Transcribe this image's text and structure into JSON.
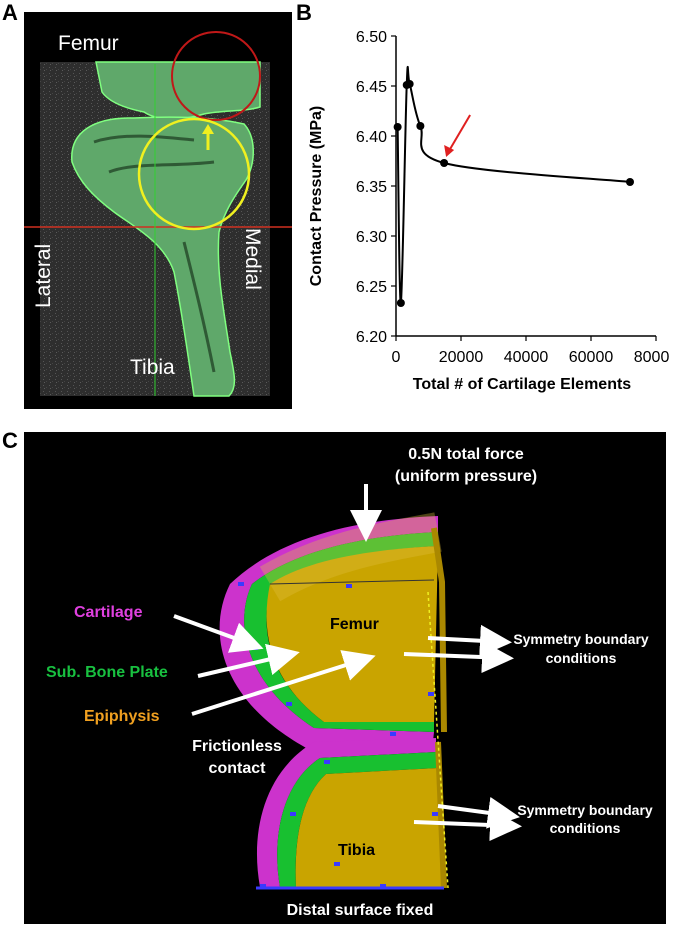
{
  "panels": {
    "a": "A",
    "b": "B",
    "c": "C"
  },
  "panel_a": {
    "femur": "Femur",
    "tibia": "Tibia",
    "lateral": "Lateral",
    "medial": "Medial"
  },
  "chart_data": {
    "type": "line",
    "xlabel": "Total # of Cartilage Elements",
    "ylabel": "Contact Pressure (MPa)",
    "xlim": [
      0,
      80000
    ],
    "ylim": [
      6.2,
      6.5
    ],
    "x_ticks": [
      0,
      20000,
      40000,
      60000,
      80000
    ],
    "y_ticks": [
      6.2,
      6.25,
      6.3,
      6.35,
      6.4,
      6.45,
      6.5
    ],
    "x_tick_labels": [
      "0",
      "20000",
      "40000",
      "60000",
      "80000"
    ],
    "y_tick_labels": [
      "6.20",
      "6.25",
      "6.30",
      "6.35",
      "6.40",
      "6.45",
      "6.50"
    ],
    "grid": false,
    "series": [
      {
        "x": [
          500,
          1500,
          3300,
          4200,
          7500,
          14800,
          72000
        ],
        "values": [
          6.409,
          6.233,
          6.451,
          6.452,
          6.41,
          6.373,
          6.354
        ]
      }
    ],
    "annotation": {
      "type": "red-arrow",
      "points_to_x": 14800
    },
    "colors": {
      "line": "#000000",
      "marker": "#000000",
      "arrow": "#e02020"
    }
  },
  "panel_c": {
    "force": [
      "0.5N total force",
      "(uniform pressure)"
    ],
    "cartilage": "Cartilage",
    "sub_bone_plate": "Sub. Bone Plate",
    "epiphysis": "Epiphysis",
    "frictionless": [
      "Frictionless",
      "contact"
    ],
    "femur": "Femur",
    "tibia": "Tibia",
    "symmetry_1": [
      "Symmetry boundary",
      "conditions"
    ],
    "symmetry_2": [
      "Symmetry boundary",
      "conditions"
    ],
    "distal": "Distal surface fixed",
    "colors": {
      "cartilage": "#cc33cc",
      "bone_plate": "#18c030",
      "epiphysis": "#c9a400",
      "epiphysis_label": "#f0a020",
      "bone_plate_label": "#18c040",
      "cartilage_label": "#e040e0"
    }
  }
}
